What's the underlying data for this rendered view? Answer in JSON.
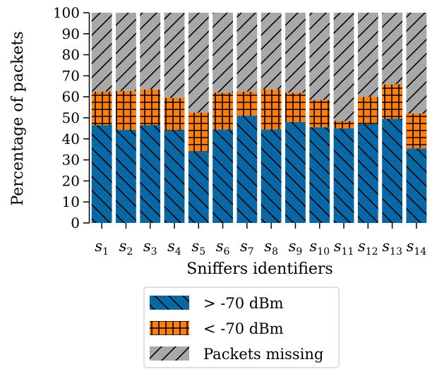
{
  "chart_data": {
    "type": "bar",
    "stacked": true,
    "title": "",
    "xlabel": "Sniffers identifiers",
    "ylabel": "Percentage of packets",
    "ylim": [
      0,
      100
    ],
    "yticks": [
      0,
      10,
      20,
      30,
      40,
      50,
      60,
      70,
      80,
      90,
      100
    ],
    "categories": [
      {
        "base": "s",
        "sub": "1"
      },
      {
        "base": "s",
        "sub": "2"
      },
      {
        "base": "s",
        "sub": "3"
      },
      {
        "base": "s",
        "sub": "4"
      },
      {
        "base": "s",
        "sub": "5"
      },
      {
        "base": "s",
        "sub": "6"
      },
      {
        "base": "s",
        "sub": "7"
      },
      {
        "base": "s",
        "sub": "8"
      },
      {
        "base": "s",
        "sub": "9"
      },
      {
        "base": "s",
        "sub": "10"
      },
      {
        "base": "s",
        "sub": "11"
      },
      {
        "base": "s",
        "sub": "12"
      },
      {
        "base": "s",
        "sub": "13"
      },
      {
        "base": "s",
        "sub": "14"
      }
    ],
    "series": [
      {
        "name": "> -70 dBm",
        "color": "#0868a6",
        "hatch": "backslash",
        "values": [
          46.5,
          44.3,
          46.5,
          44.0,
          34.0,
          44.5,
          51.0,
          44.5,
          48.0,
          45.5,
          45.0,
          47.0,
          49.5,
          35.5
        ]
      },
      {
        "name": "< -70 dBm",
        "color": "#ff7f0e",
        "hatch": "grid",
        "values": [
          16.0,
          18.5,
          17.0,
          15.5,
          18.5,
          17.5,
          11.5,
          19.0,
          14.0,
          13.0,
          3.5,
          13.0,
          16.5,
          16.5
        ]
      },
      {
        "name": "Packets missing",
        "color": "#a8a8a8",
        "hatch": "slash",
        "values": [
          37.5,
          37.2,
          36.5,
          40.5,
          47.5,
          38.0,
          37.5,
          36.5,
          38.0,
          41.5,
          51.5,
          40.0,
          34.0,
          48.0
        ]
      }
    ],
    "legend": {
      "position": "bottom-center",
      "orientation": "vertical"
    }
  }
}
